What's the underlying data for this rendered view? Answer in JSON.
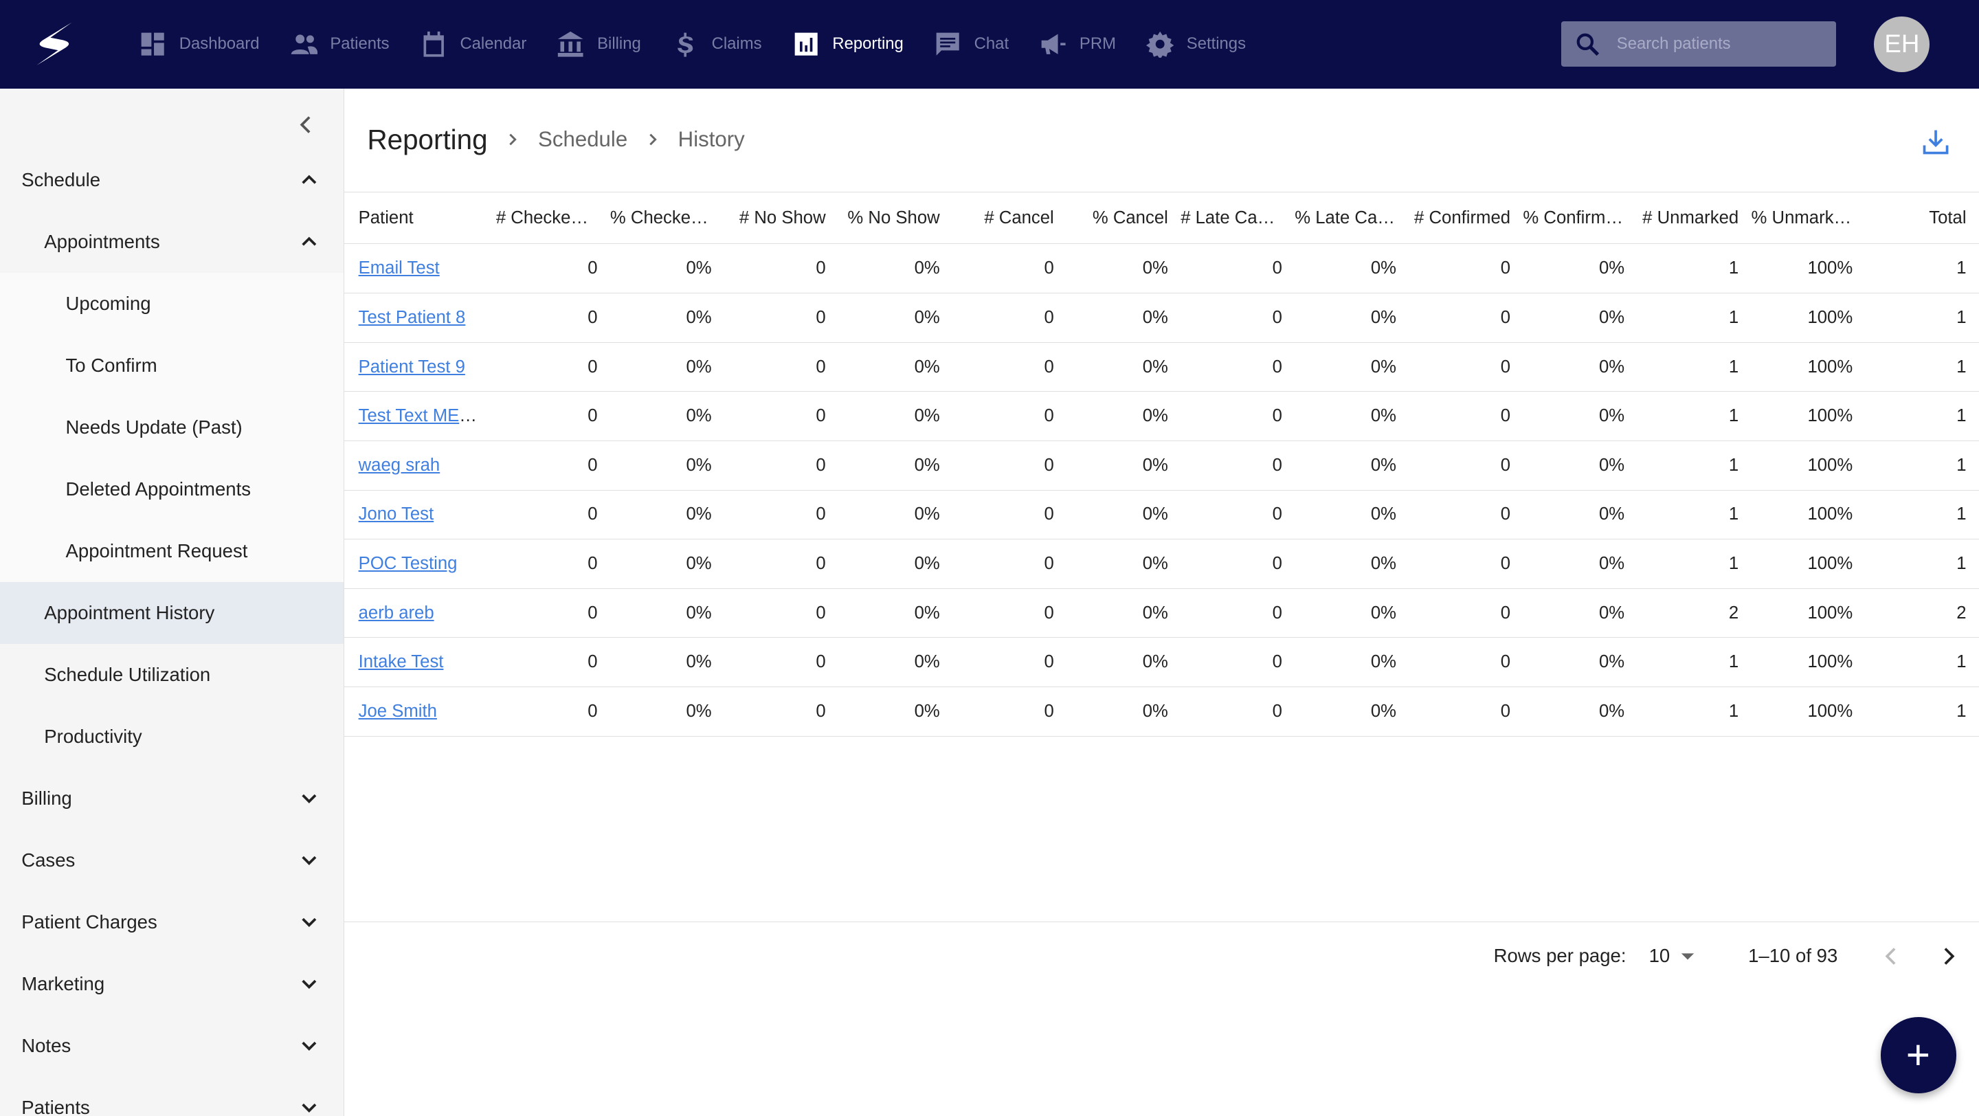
{
  "nav": {
    "items": [
      {
        "label": "Dashboard",
        "icon": "dashboard-icon"
      },
      {
        "label": "Patients",
        "icon": "people-icon"
      },
      {
        "label": "Calendar",
        "icon": "calendar-icon"
      },
      {
        "label": "Billing",
        "icon": "bank-icon"
      },
      {
        "label": "Claims",
        "icon": "dollar-icon"
      },
      {
        "label": "Reporting",
        "icon": "bar-chart-icon",
        "active": true
      },
      {
        "label": "Chat",
        "icon": "chat-icon"
      },
      {
        "label": "PRM",
        "icon": "megaphone-icon"
      },
      {
        "label": "Settings",
        "icon": "gear-icon"
      }
    ],
    "search_placeholder": "Search patients",
    "avatar": "EH"
  },
  "sidebar": {
    "items": [
      {
        "label": "Schedule",
        "level": 0,
        "chev": "up"
      },
      {
        "label": "Appointments",
        "level": 1,
        "chev": "up"
      },
      {
        "label": "Upcoming",
        "level": 2
      },
      {
        "label": "To Confirm",
        "level": 2
      },
      {
        "label": "Needs Update (Past)",
        "level": 2
      },
      {
        "label": "Deleted Appointments",
        "level": 2
      },
      {
        "label": "Appointment Request",
        "level": 2
      },
      {
        "label": "Appointment History",
        "level": 1,
        "selected": true
      },
      {
        "label": "Schedule Utilization",
        "level": 1
      },
      {
        "label": "Productivity",
        "level": 1
      },
      {
        "label": "Billing",
        "level": 0,
        "chev": "down"
      },
      {
        "label": "Cases",
        "level": 0,
        "chev": "down"
      },
      {
        "label": "Patient Charges",
        "level": 0,
        "chev": "down"
      },
      {
        "label": "Marketing",
        "level": 0,
        "chev": "down"
      },
      {
        "label": "Notes",
        "level": 0,
        "chev": "down"
      },
      {
        "label": "Patients",
        "level": 0,
        "chev": "down"
      }
    ]
  },
  "breadcrumb": {
    "title": "Reporting",
    "items": [
      "Schedule",
      "History"
    ]
  },
  "table": {
    "columns": [
      "Patient",
      "# Checked In",
      "% Checked In",
      "# No Show",
      "% No Show",
      "# Cancel",
      "% Cancel",
      "# Late Cancel",
      "% Late Cancel",
      "# Confirmed",
      "% Confirmed",
      "# Unmarked",
      "% Unmarked",
      "Total"
    ],
    "rows": [
      [
        "Email Test",
        "0",
        "0%",
        "0",
        "0%",
        "0",
        "0%",
        "0",
        "0%",
        "0",
        "0%",
        "1",
        "100%",
        "1"
      ],
      [
        "Test Patient 8",
        "0",
        "0%",
        "0",
        "0%",
        "0",
        "0%",
        "0",
        "0%",
        "0",
        "0%",
        "1",
        "100%",
        "1"
      ],
      [
        "Patient Test 9",
        "0",
        "0%",
        "0",
        "0%",
        "0",
        "0%",
        "0",
        "0%",
        "0",
        "0%",
        "1",
        "100%",
        "1"
      ],
      [
        "Test Text MESSAGE",
        "0",
        "0%",
        "0",
        "0%",
        "0",
        "0%",
        "0",
        "0%",
        "0",
        "0%",
        "1",
        "100%",
        "1"
      ],
      [
        "waeg srah",
        "0",
        "0%",
        "0",
        "0%",
        "0",
        "0%",
        "0",
        "0%",
        "0",
        "0%",
        "1",
        "100%",
        "1"
      ],
      [
        "Jono Test",
        "0",
        "0%",
        "0",
        "0%",
        "0",
        "0%",
        "0",
        "0%",
        "0",
        "0%",
        "1",
        "100%",
        "1"
      ],
      [
        "POC Testing",
        "0",
        "0%",
        "0",
        "0%",
        "0",
        "0%",
        "0",
        "0%",
        "0",
        "0%",
        "1",
        "100%",
        "1"
      ],
      [
        "aerb areb",
        "0",
        "0%",
        "0",
        "0%",
        "0",
        "0%",
        "0",
        "0%",
        "0",
        "0%",
        "2",
        "100%",
        "2"
      ],
      [
        "Intake Test",
        "0",
        "0%",
        "0",
        "0%",
        "0",
        "0%",
        "0",
        "0%",
        "0",
        "0%",
        "1",
        "100%",
        "1"
      ],
      [
        "Joe Smith",
        "0",
        "0%",
        "0",
        "0%",
        "0",
        "0%",
        "0",
        "0%",
        "0",
        "0%",
        "1",
        "100%",
        "1"
      ]
    ]
  },
  "pagination": {
    "rows_label": "Rows per page:",
    "rows_value": "10",
    "range": "1–10 of 93"
  },
  "colors": {
    "topbar": "#0a0d47",
    "link": "#3f7fe0",
    "selected": "#e6eaf1"
  }
}
